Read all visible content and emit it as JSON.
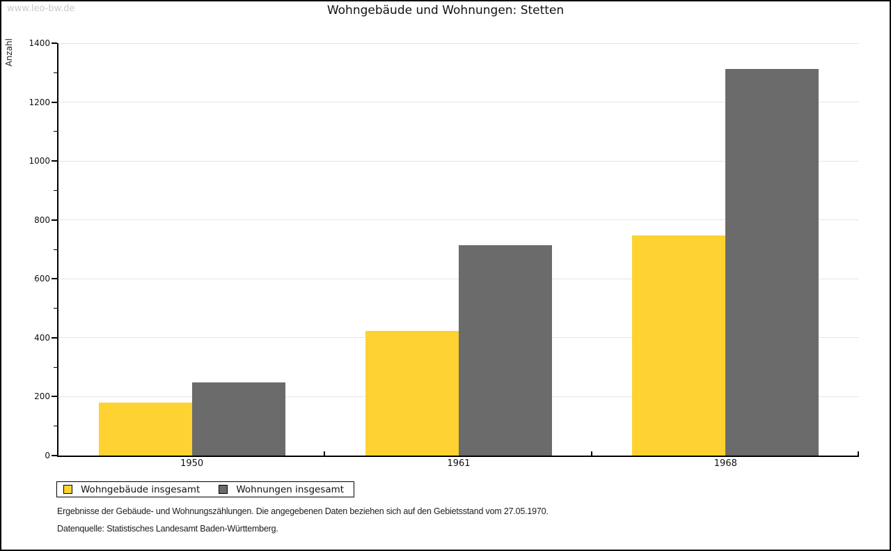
{
  "page": {
    "watermark": "www.leo-bw.de"
  },
  "chart_data": {
    "type": "bar",
    "title": "Wohngebäude und Wohnungen: Stetten",
    "xlabel": "",
    "ylabel": "Anzahl",
    "categories": [
      "1950",
      "1961",
      "1968"
    ],
    "series": [
      {
        "name": "Wohngebäude insgesamt",
        "color": "#fdd231",
        "values": [
          180,
          424,
          748
        ]
      },
      {
        "name": "Wohnungen insgesamt",
        "color": "#6b6b6b",
        "values": [
          248,
          714,
          1312
        ]
      }
    ],
    "ylim": [
      0,
      1400
    ],
    "ytick_step": 200,
    "yminor_step": 100,
    "grid": "horizontal",
    "legend_position": "bottom-left",
    "gridline_color": "#e4e4e4"
  },
  "footer": {
    "line1": "Ergebnisse der Gebäude- und Wohnungszählungen. Die angegebenen Daten beziehen sich auf den Gebietsstand vom 27.05.1970.",
    "line2": "Datenquelle: Statistisches Landesamt Baden-Württemberg."
  }
}
